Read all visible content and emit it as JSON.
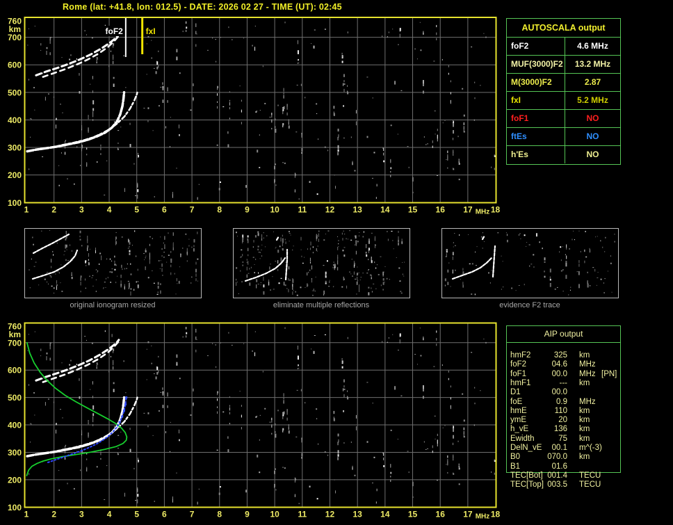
{
  "title": "Rome (lat: +41.8, lon: 012.5) - DATE: 2026 02 27 - TIME (UT): 02:45",
  "colors": {
    "background": "#000000",
    "title": "#f0ee28",
    "axis_labels": "#eeeb66",
    "plot_border": "#e6e22e",
    "grid": "#6f6f6f",
    "echo_trace": "#ffffff",
    "profile_green": "#17cf2e",
    "restored_blue": "#2e46ff",
    "table_border": "#55c555",
    "caption_gray": "#a8a8a8"
  },
  "autoscala_table": {
    "header": "AUTOSCALA output",
    "rows": [
      {
        "param": "foF2",
        "value": "4.6 MHz",
        "color": "#ffffff",
        "value_color": "#ffffff"
      },
      {
        "param": "MUF(3000)F2",
        "value": "13.2 MHz",
        "color": "#f2f2a6",
        "value_color": "#f2f2a6"
      },
      {
        "param": "M(3000)F2",
        "value": "2.87",
        "color": "#ecec4c",
        "value_color": "#ecec4c"
      },
      {
        "param": "fxI",
        "value": "5.2 MHz",
        "color": "#e8e400",
        "value_color": "#cfcf00"
      },
      {
        "param": "foF1",
        "value": "NO",
        "color": "#ff1f1f",
        "value_color": "#ff1f1f"
      },
      {
        "param": "ftEs",
        "value": "NO",
        "color": "#2f8fff",
        "value_color": "#2f8fff"
      },
      {
        "param": "h'Es",
        "value": "NO",
        "color": "#eeee90",
        "value_color": "#eeee90"
      }
    ]
  },
  "aip_table": {
    "header": "AIP output",
    "rows": [
      {
        "param": "hmF2",
        "value": "325",
        "unit": "km",
        "extra": ""
      },
      {
        "param": "foF2",
        "value": "04.6",
        "unit": "MHz",
        "extra": ""
      },
      {
        "param": "foF1",
        "value": "00.0",
        "unit": "MHz",
        "extra": "[PN]"
      },
      {
        "param": "hmF1",
        "value": "---",
        "unit": "km",
        "extra": ""
      },
      {
        "param": "D1",
        "value": "00.0",
        "unit": "",
        "extra": ""
      },
      {
        "param": "foE",
        "value": "0.9",
        "unit": "MHz",
        "extra": ""
      },
      {
        "param": "hmE",
        "value": "110",
        "unit": "km",
        "extra": ""
      },
      {
        "param": "ymE",
        "value": "20",
        "unit": "km",
        "extra": ""
      },
      {
        "param": "h_vE",
        "value": "136",
        "unit": "km",
        "extra": ""
      },
      {
        "param": "Ewidth",
        "value": "75",
        "unit": "km",
        "extra": ""
      },
      {
        "param": "DelN_vE",
        "value": "00.1",
        "unit": "m^(-3)",
        "extra": ""
      },
      {
        "param": "B0",
        "value": "070.0",
        "unit": "km",
        "extra": ""
      },
      {
        "param": "B1",
        "value": "01.6",
        "unit": "",
        "extra": ""
      },
      {
        "param": "TEC[Bot]",
        "value": "001.4",
        "unit": "TECU",
        "extra": ""
      },
      {
        "param": "TEC[Top]",
        "value": "003.5",
        "unit": "TECU",
        "extra": ""
      }
    ]
  },
  "panels": [
    {
      "caption": "original ionogram resized",
      "traces": [
        [
          [
            13,
            36
          ],
          [
            26,
            29
          ],
          [
            40,
            22
          ],
          [
            53,
            15
          ],
          [
            64,
            9
          ]
        ],
        [
          [
            12,
            73
          ],
          [
            28,
            68
          ],
          [
            43,
            63
          ],
          [
            56,
            56
          ],
          [
            66,
            48
          ],
          [
            73,
            40
          ],
          [
            76,
            32
          ]
        ]
      ]
    },
    {
      "caption": "eliminate multiple reflections",
      "traces": [
        [
          [
            18,
            76
          ],
          [
            33,
            71
          ],
          [
            48,
            65
          ],
          [
            61,
            58
          ],
          [
            70,
            50
          ],
          [
            75,
            43
          ]
        ],
        [
          [
            76,
            74
          ],
          [
            77,
            60
          ],
          [
            78,
            46
          ],
          [
            78,
            31
          ]
        ],
        [
          [
            63,
            17
          ],
          [
            66,
            12
          ]
        ]
      ]
    },
    {
      "caption": "evidence F2 trace",
      "traces": [
        [
          [
            16,
            73
          ],
          [
            30,
            68
          ],
          [
            44,
            63
          ],
          [
            56,
            57
          ],
          [
            65,
            50
          ],
          [
            72,
            43
          ]
        ],
        [
          [
            74,
            70
          ],
          [
            75,
            55
          ],
          [
            76,
            40
          ],
          [
            77,
            26
          ]
        ],
        [
          [
            59,
            16
          ],
          [
            62,
            11
          ]
        ]
      ]
    }
  ],
  "chart_data": {
    "type": "scatter",
    "x_axis": {
      "unit": "MHz",
      "range": [
        1,
        18
      ],
      "ticks": [
        1,
        2,
        3,
        4,
        5,
        6,
        7,
        8,
        9,
        10,
        11,
        12,
        13,
        14,
        15,
        16,
        17,
        18
      ]
    },
    "y_axis": {
      "unit": "km",
      "range": [
        100,
        760
      ],
      "ticks": [
        760,
        700,
        600,
        500,
        400,
        300,
        200,
        100
      ]
    },
    "top_plot": {
      "annotations": [
        {
          "label": "foF2",
          "f_mhz": 4.6,
          "color": "#ffffff"
        },
        {
          "label": "fxI",
          "f_mhz": 5.2,
          "color": "#f0e400"
        }
      ],
      "series": [
        "f2_o",
        "f2_x",
        "hop2_a",
        "hop2_b"
      ]
    },
    "bottom_plot": {
      "series": [
        "f2_o",
        "f2_x",
        "hop2_a",
        "hop2_b",
        "model_profile",
        "restored_trace"
      ]
    },
    "series": {
      "f2_o": {
        "name": "F2 trace O-ray echo",
        "color": "#ffffff",
        "points": [
          [
            1.03,
            286
          ],
          [
            1.35,
            292
          ],
          [
            1.7,
            297
          ],
          [
            2.1,
            303
          ],
          [
            2.5,
            311
          ],
          [
            2.9,
            319
          ],
          [
            3.25,
            329
          ],
          [
            3.55,
            340
          ],
          [
            3.85,
            354
          ],
          [
            4.1,
            372
          ],
          [
            4.28,
            394
          ],
          [
            4.4,
            420
          ],
          [
            4.48,
            450
          ],
          [
            4.52,
            478
          ],
          [
            4.54,
            500
          ]
        ]
      },
      "f2_x": {
        "name": "F2 trace X-ray echo",
        "color": "#ffffff",
        "points": [
          [
            1.9,
            300
          ],
          [
            2.3,
            309
          ],
          [
            2.7,
            317
          ],
          [
            3.1,
            327
          ],
          [
            3.45,
            338
          ],
          [
            3.75,
            352
          ],
          [
            4.05,
            368
          ],
          [
            4.3,
            388
          ],
          [
            4.55,
            412
          ],
          [
            4.75,
            440
          ],
          [
            4.9,
            468
          ],
          [
            5.0,
            492
          ],
          [
            5.03,
            505
          ]
        ]
      },
      "hop2_a": {
        "name": "second-hop echo a",
        "color": "#ffffff",
        "points": [
          [
            1.35,
            562
          ],
          [
            1.7,
            575
          ],
          [
            2.1,
            588
          ],
          [
            2.5,
            602
          ],
          [
            2.9,
            618
          ],
          [
            3.3,
            636
          ],
          [
            3.7,
            658
          ],
          [
            4.0,
            678
          ],
          [
            4.25,
            698
          ],
          [
            4.35,
            710
          ]
        ]
      },
      "hop2_b": {
        "name": "second-hop echo b",
        "color": "#ffffff",
        "points": [
          [
            1.6,
            556
          ],
          [
            2.0,
            570
          ],
          [
            2.4,
            584
          ],
          [
            2.8,
            600
          ],
          [
            3.2,
            618
          ],
          [
            3.6,
            640
          ],
          [
            3.95,
            664
          ],
          [
            4.2,
            688
          ],
          [
            4.35,
            705
          ]
        ]
      },
      "model_profile": {
        "name": "electron density profile",
        "color": "#17cf2e",
        "points": [
          [
            1.02,
            700
          ],
          [
            1.12,
            662
          ],
          [
            1.28,
            626
          ],
          [
            1.5,
            592
          ],
          [
            1.75,
            562
          ],
          [
            2.05,
            534
          ],
          [
            2.4,
            508
          ],
          [
            2.8,
            484
          ],
          [
            3.2,
            462
          ],
          [
            3.6,
            441
          ],
          [
            3.95,
            422
          ],
          [
            4.25,
            404
          ],
          [
            4.45,
            388
          ],
          [
            4.58,
            372
          ],
          [
            4.64,
            356
          ],
          [
            4.62,
            344
          ],
          [
            4.5,
            332
          ],
          [
            4.25,
            321
          ],
          [
            3.85,
            311
          ],
          [
            3.35,
            301
          ],
          [
            2.8,
            292
          ],
          [
            2.3,
            284
          ],
          [
            1.9,
            276
          ],
          [
            1.6,
            268
          ],
          [
            1.38,
            259
          ],
          [
            1.2,
            249
          ],
          [
            1.08,
            235
          ],
          [
            1.01,
            215
          ]
        ]
      },
      "restored_trace": {
        "name": "restored F2 trace",
        "color": "#2e46ff",
        "points": [
          [
            1.78,
            263
          ],
          [
            1.95,
            269
          ],
          [
            2.15,
            276
          ],
          [
            2.35,
            283
          ],
          [
            2.55,
            290
          ],
          [
            2.75,
            297
          ],
          [
            2.95,
            304
          ],
          [
            3.15,
            312
          ],
          [
            3.35,
            321
          ],
          [
            3.55,
            331
          ],
          [
            3.75,
            343
          ],
          [
            3.95,
            357
          ],
          [
            4.12,
            373
          ],
          [
            4.27,
            391
          ],
          [
            4.38,
            410
          ],
          [
            4.47,
            430
          ],
          [
            4.54,
            452
          ],
          [
            4.59,
            475
          ],
          [
            4.62,
            500
          ]
        ]
      }
    }
  }
}
